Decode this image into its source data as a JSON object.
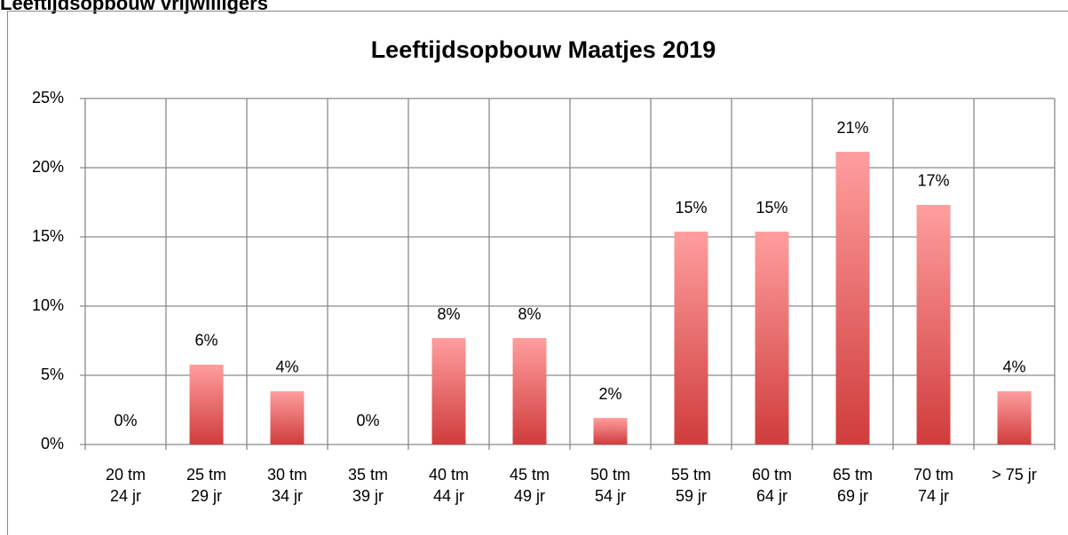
{
  "header": {
    "title": "Leeftijdsopbouw vrijwilligers"
  },
  "chart_data": {
    "type": "bar",
    "title": "Leeftijdsopbouw Maatjes 2019",
    "categories": [
      "20 tm 24 jr",
      "25 tm 29 jr",
      "30 tm 34 jr",
      "35 tm 39 jr",
      "40 tm 44 jr",
      "45 tm 49 jr",
      "50 tm 54 jr",
      "55 tm 59 jr",
      "60 tm 64 jr",
      "65 tm 69 jr",
      "70 tm 74 jr",
      "> 75 jr"
    ],
    "values": [
      0,
      5.77,
      3.85,
      0,
      7.69,
      7.69,
      1.92,
      15.38,
      15.38,
      21.15,
      17.31,
      3.85
    ],
    "value_labels": [
      "0%",
      "6%",
      "4%",
      "0%",
      "8%",
      "8%",
      "2%",
      "15%",
      "15%",
      "21%",
      "17%",
      "4%"
    ],
    "color": "#e05a5a",
    "ylim": [
      0,
      25
    ],
    "yticks": [
      {
        "value": 0,
        "label": "0%"
      },
      {
        "value": 5,
        "label": "5%"
      },
      {
        "value": 10,
        "label": "10%"
      },
      {
        "value": 15,
        "label": "15%"
      },
      {
        "value": 20,
        "label": "20%"
      },
      {
        "value": 25,
        "label": "25%"
      }
    ],
    "grid": true
  }
}
